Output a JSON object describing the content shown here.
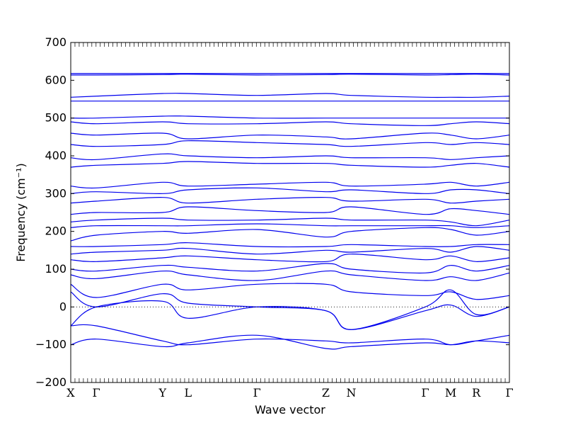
{
  "chart_data": {
    "type": "line",
    "xlabel": "Wave vector",
    "ylabel": "Frequency (cm⁻¹)",
    "ylim": [
      -200,
      700
    ],
    "yticks": [
      -200,
      -100,
      0,
      100,
      200,
      300,
      400,
      500,
      600,
      700
    ],
    "x_range": [
      0,
      17.2
    ],
    "kpoints": [
      {
        "label": "X",
        "x": 0.0
      },
      {
        "label": "Γ",
        "x": 1.0
      },
      {
        "label": "Y",
        "x": 3.6
      },
      {
        "label": "L",
        "x": 4.6
      },
      {
        "label": "Γ",
        "x": 7.3
      },
      {
        "label": "Z",
        "x": 10.0
      },
      {
        "label": "N",
        "x": 11.0
      },
      {
        "label": "Γ",
        "x": 13.9
      },
      {
        "label": "M",
        "x": 14.9
      },
      {
        "label": "R",
        "x": 15.9
      },
      {
        "label": "Γ",
        "x": 17.2
      }
    ],
    "reference_line": {
      "y": 0,
      "style": "dotted"
    },
    "line_color": "#0000ee",
    "grid": false,
    "series": [
      {
        "x": [
          0,
          1,
          3.6,
          4.6,
          7.3,
          10,
          11,
          13.9,
          14.9,
          15.9,
          17.2
        ],
        "y": [
          -50,
          0,
          15,
          -30,
          0,
          -10,
          -60,
          -10,
          5,
          -25,
          0
        ]
      },
      {
        "x": [
          0,
          1,
          3.6,
          4.6,
          7.3,
          10,
          11,
          13.9,
          14.9,
          15.9,
          17.2
        ],
        "y": [
          -50,
          -50,
          -90,
          -100,
          -85,
          -90,
          -95,
          -85,
          -100,
          -90,
          -75
        ]
      },
      {
        "x": [
          0,
          1,
          3.6,
          4.6,
          7.3,
          10,
          11,
          13.9,
          14.9,
          15.9,
          17.2
        ],
        "y": [
          -100,
          -85,
          -105,
          -95,
          -75,
          -110,
          -105,
          -95,
          -100,
          -90,
          -95
        ]
      },
      {
        "x": [
          0,
          1,
          3.6,
          4.6,
          7.3,
          10,
          11,
          13.9,
          14.9,
          15.9,
          17.2
        ],
        "y": [
          40,
          0,
          35,
          10,
          0,
          -10,
          -60,
          0,
          45,
          -20,
          0
        ]
      },
      {
        "x": [
          0,
          1,
          3.6,
          4.6,
          7.3,
          10,
          11,
          13.9,
          14.9,
          15.9,
          17.2
        ],
        "y": [
          60,
          25,
          60,
          45,
          60,
          60,
          40,
          30,
          40,
          20,
          30
        ]
      },
      {
        "x": [
          0,
          1,
          3.6,
          4.6,
          7.3,
          10,
          11,
          13.9,
          14.9,
          15.9,
          17.2
        ],
        "y": [
          85,
          75,
          95,
          85,
          70,
          95,
          85,
          70,
          80,
          70,
          90
        ]
      },
      {
        "x": [
          0,
          1,
          3.6,
          4.6,
          7.3,
          10,
          11,
          13.9,
          14.9,
          15.9,
          17.2
        ],
        "y": [
          100,
          95,
          110,
          105,
          95,
          115,
          100,
          90,
          110,
          95,
          110
        ]
      },
      {
        "x": [
          0,
          1,
          3.6,
          4.6,
          7.3,
          10,
          11,
          13.9,
          14.9,
          15.9,
          17.2
        ],
        "y": [
          125,
          120,
          130,
          135,
          125,
          120,
          140,
          125,
          135,
          120,
          130
        ]
      },
      {
        "x": [
          0,
          1,
          3.6,
          4.6,
          7.3,
          10,
          11,
          13.9,
          14.9,
          15.9,
          17.2
        ],
        "y": [
          140,
          145,
          150,
          155,
          140,
          150,
          145,
          155,
          145,
          160,
          150
        ]
      },
      {
        "x": [
          0,
          1,
          3.6,
          4.6,
          7.3,
          10,
          11,
          13.9,
          14.9,
          15.9,
          17.2
        ],
        "y": [
          160,
          160,
          165,
          170,
          160,
          160,
          165,
          160,
          160,
          165,
          165
        ]
      },
      {
        "x": [
          0,
          1,
          3.6,
          4.6,
          7.3,
          10,
          11,
          13.9,
          14.9,
          15.9,
          17.2
        ],
        "y": [
          175,
          190,
          200,
          195,
          205,
          185,
          200,
          210,
          205,
          190,
          200
        ]
      },
      {
        "x": [
          0,
          1,
          3.6,
          4.6,
          7.3,
          10,
          11,
          13.9,
          14.9,
          15.9,
          17.2
        ],
        "y": [
          210,
          215,
          215,
          215,
          220,
          215,
          215,
          215,
          215,
          210,
          215
        ]
      },
      {
        "x": [
          0,
          1,
          3.6,
          4.6,
          7.3,
          10,
          11,
          13.9,
          14.9,
          15.9,
          17.2
        ],
        "y": [
          225,
          230,
          235,
          230,
          230,
          235,
          230,
          230,
          225,
          215,
          230
        ]
      },
      {
        "x": [
          0,
          1,
          3.6,
          4.6,
          7.3,
          10,
          11,
          13.9,
          14.9,
          15.9,
          17.2
        ],
        "y": [
          245,
          250,
          250,
          265,
          255,
          250,
          265,
          245,
          260,
          255,
          245
        ]
      },
      {
        "x": [
          0,
          1,
          3.6,
          4.6,
          7.3,
          10,
          11,
          13.9,
          14.9,
          15.9,
          17.2
        ],
        "y": [
          275,
          280,
          290,
          275,
          285,
          290,
          280,
          285,
          275,
          280,
          285
        ]
      },
      {
        "x": [
          0,
          1,
          3.6,
          4.6,
          7.3,
          10,
          11,
          13.9,
          14.9,
          15.9,
          17.2
        ],
        "y": [
          300,
          305,
          300,
          310,
          315,
          305,
          310,
          300,
          310,
          310,
          300
        ]
      },
      {
        "x": [
          0,
          1,
          3.6,
          4.6,
          7.3,
          10,
          11,
          13.9,
          14.9,
          15.9,
          17.2
        ],
        "y": [
          320,
          315,
          330,
          320,
          325,
          330,
          320,
          325,
          330,
          320,
          330
        ]
      },
      {
        "x": [
          0,
          1,
          3.6,
          4.6,
          7.3,
          10,
          11,
          13.9,
          14.9,
          15.9,
          17.2
        ],
        "y": [
          370,
          375,
          380,
          385,
          380,
          380,
          375,
          370,
          375,
          380,
          370
        ]
      },
      {
        "x": [
          0,
          1,
          3.6,
          4.6,
          7.3,
          10,
          11,
          13.9,
          14.9,
          15.9,
          17.2
        ],
        "y": [
          395,
          390,
          405,
          400,
          395,
          400,
          395,
          395,
          390,
          395,
          400
        ]
      },
      {
        "x": [
          0,
          1,
          3.6,
          4.6,
          7.3,
          10,
          11,
          13.9,
          14.9,
          15.9,
          17.2
        ],
        "y": [
          430,
          425,
          430,
          440,
          435,
          430,
          425,
          435,
          430,
          435,
          430
        ]
      },
      {
        "x": [
          0,
          1,
          3.6,
          4.6,
          7.3,
          10,
          11,
          13.9,
          14.9,
          15.9,
          17.2
        ],
        "y": [
          460,
          455,
          460,
          445,
          455,
          450,
          445,
          460,
          455,
          445,
          455
        ]
      },
      {
        "x": [
          0,
          1,
          3.6,
          4.6,
          7.3,
          10,
          11,
          13.9,
          14.9,
          15.9,
          17.2
        ],
        "y": [
          490,
          485,
          490,
          485,
          485,
          490,
          485,
          480,
          485,
          490,
          485
        ]
      },
      {
        "x": [
          0,
          1,
          3.6,
          4.6,
          7.3,
          10,
          11,
          13.9,
          14.9,
          15.9,
          17.2
        ],
        "y": [
          500,
          500,
          505,
          505,
          500,
          500,
          500,
          500,
          500,
          500,
          500
        ]
      },
      {
        "x": [
          0,
          1,
          3.6,
          4.6,
          7.3,
          10,
          11,
          13.9,
          14.9,
          15.9,
          17.2
        ],
        "y": [
          545,
          545,
          545,
          545,
          545,
          545,
          545,
          545,
          545,
          545,
          545
        ]
      },
      {
        "x": [
          0,
          1,
          3.6,
          4.6,
          7.3,
          10,
          11,
          13.9,
          14.9,
          15.9,
          17.2
        ],
        "y": [
          555,
          558,
          565,
          565,
          560,
          565,
          560,
          555,
          555,
          555,
          558
        ]
      },
      {
        "x": [
          0,
          1,
          3.6,
          4.6,
          7.3,
          10,
          11,
          13.9,
          14.9,
          15.9,
          17.2
        ],
        "y": [
          614,
          614,
          615,
          616,
          614,
          615,
          616,
          614,
          615,
          616,
          614
        ]
      },
      {
        "x": [
          0,
          1,
          3.6,
          4.6,
          7.3,
          10,
          11,
          13.9,
          14.9,
          15.9,
          17.2
        ],
        "y": [
          618,
          618,
          618,
          618,
          618,
          618,
          618,
          618,
          618,
          618,
          618
        ]
      }
    ]
  }
}
